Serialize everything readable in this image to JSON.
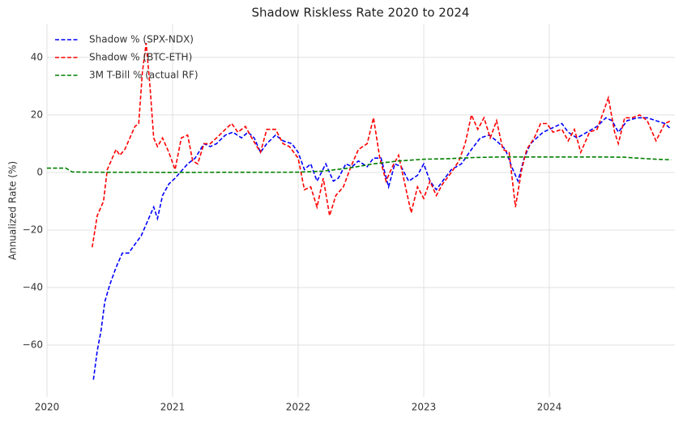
{
  "chart_data": {
    "type": "line",
    "title": "Shadow Riskless Rate 2020 to 2024",
    "y_label": "Annualized Rate (%)",
    "xlim": [
      2020,
      2025
    ],
    "xticks": [
      2020,
      2021,
      2022,
      2023,
      2024
    ],
    "ylim": [
      -78,
      51.5
    ],
    "yticks": [
      {
        "value": -60,
        "label": "−60"
      },
      {
        "value": -40,
        "label": "−40"
      },
      {
        "value": -20,
        "label": "−20"
      },
      0,
      20,
      40
    ],
    "grid": true,
    "legend": "upper left",
    "series": [
      {
        "name": "Shadow % (SPX-NDX)",
        "color": "#0000ff",
        "x": [
          2020.37,
          2020.4,
          2020.43,
          2020.46,
          2020.5,
          2020.55,
          2020.6,
          2020.65,
          2020.7,
          2020.75,
          2020.8,
          2020.85,
          2020.88,
          2020.92,
          2020.97,
          2021.02,
          2021.08,
          2021.12,
          2021.18,
          2021.25,
          2021.3,
          2021.35,
          2021.42,
          2021.48,
          2021.55,
          2021.6,
          2021.65,
          2021.7,
          2021.75,
          2021.82,
          2021.88,
          2021.95,
          2022.0,
          2022.05,
          2022.1,
          2022.15,
          2022.22,
          2022.28,
          2022.32,
          2022.38,
          2022.43,
          2022.48,
          2022.55,
          2022.6,
          2022.66,
          2022.72,
          2022.77,
          2022.82,
          2022.88,
          2022.95,
          2023.0,
          2023.05,
          2023.1,
          2023.15,
          2023.22,
          2023.3,
          2023.38,
          2023.45,
          2023.52,
          2023.58,
          2023.65,
          2023.7,
          2023.75,
          2023.8,
          2023.85,
          2023.9,
          2023.95,
          2024.0,
          2024.05,
          2024.1,
          2024.15,
          2024.22,
          2024.3,
          2024.38,
          2024.45,
          2024.5,
          2024.55,
          2024.62,
          2024.7,
          2024.78,
          2024.85,
          2024.92,
          2024.97
        ],
        "values": [
          -72,
          -62,
          -55,
          -45,
          -39,
          -33,
          -28,
          -28,
          -25,
          -22,
          -17,
          -12,
          -16,
          -8,
          -4,
          -2,
          1,
          3,
          5,
          10,
          9,
          10,
          13,
          14,
          12,
          14,
          12,
          7,
          10,
          13,
          11,
          10,
          7,
          1,
          3,
          -3,
          3,
          -3,
          -2,
          3,
          2,
          4,
          2,
          5,
          5,
          -5,
          3,
          2,
          -3,
          -1,
          3,
          -3,
          -6,
          -3,
          1,
          3,
          8,
          12,
          13,
          11,
          8,
          2,
          -3,
          5,
          10,
          12,
          14,
          15,
          16,
          17,
          14,
          12,
          14,
          16,
          19,
          18,
          14,
          18,
          19,
          19,
          18,
          17,
          15
        ]
      },
      {
        "name": "Shadow % (BTC-ETH)",
        "color": "#ff0000",
        "x": [
          2020.36,
          2020.4,
          2020.45,
          2020.48,
          2020.52,
          2020.55,
          2020.58,
          2020.62,
          2020.66,
          2020.7,
          2020.73,
          2020.76,
          2020.79,
          2020.82,
          2020.85,
          2020.88,
          2020.92,
          2020.97,
          2021.02,
          2021.07,
          2021.12,
          2021.16,
          2021.2,
          2021.25,
          2021.3,
          2021.35,
          2021.42,
          2021.47,
          2021.52,
          2021.58,
          2021.63,
          2021.7,
          2021.75,
          2021.82,
          2021.88,
          2021.93,
          2022.0,
          2022.05,
          2022.1,
          2022.15,
          2022.2,
          2022.25,
          2022.3,
          2022.36,
          2022.42,
          2022.48,
          2022.55,
          2022.6,
          2022.65,
          2022.7,
          2022.75,
          2022.8,
          2022.85,
          2022.9,
          2022.95,
          2023.0,
          2023.05,
          2023.1,
          2023.15,
          2023.22,
          2023.28,
          2023.33,
          2023.38,
          2023.43,
          2023.48,
          2023.53,
          2023.58,
          2023.63,
          2023.68,
          2023.73,
          2023.78,
          2023.82,
          2023.88,
          2023.93,
          2023.98,
          2024.03,
          2024.1,
          2024.15,
          2024.2,
          2024.25,
          2024.32,
          2024.38,
          2024.43,
          2024.47,
          2024.52,
          2024.55,
          2024.6,
          2024.66,
          2024.72,
          2024.78,
          2024.85,
          2024.92,
          2024.97
        ],
        "values": [
          -26,
          -15,
          -10,
          1,
          5,
          8,
          6,
          8,
          12,
          16,
          17,
          35,
          45,
          30,
          12,
          9,
          12,
          7,
          1,
          12,
          13,
          4,
          3,
          10,
          10,
          12,
          15,
          17,
          14,
          16,
          12,
          7,
          15,
          15,
          10,
          9,
          5,
          -6,
          -5,
          -12,
          -2,
          -15,
          -8,
          -5,
          2,
          8,
          10,
          19,
          5,
          -3,
          2,
          6,
          -4,
          -14,
          -5,
          -9,
          -3,
          -8,
          -4,
          0,
          4,
          10,
          20,
          15,
          19,
          12,
          18,
          8,
          7,
          -12,
          1,
          8,
          12,
          17,
          17,
          14,
          15,
          11,
          15,
          7,
          14,
          15,
          21,
          26,
          14,
          10,
          19,
          19,
          20,
          18,
          11,
          17,
          18
        ]
      },
      {
        "name": "3M T-Bill % (actual RF)",
        "color": "#008000",
        "x": [
          2020.0,
          2020.15,
          2020.2,
          2020.3,
          2021.0,
          2022.0,
          2022.2,
          2022.4,
          2022.6,
          2022.8,
          2023.0,
          2023.2,
          2023.4,
          2023.6,
          2023.8,
          2024.0,
          2024.4,
          2024.6,
          2024.7,
          2024.85,
          2024.97
        ],
        "values": [
          1.5,
          1.5,
          0.2,
          0.1,
          0.05,
          0.1,
          0.5,
          1.5,
          3,
          4,
          4.6,
          4.8,
          5.2,
          5.4,
          5.4,
          5.4,
          5.4,
          5.3,
          5,
          4.6,
          4.4
        ]
      }
    ]
  }
}
